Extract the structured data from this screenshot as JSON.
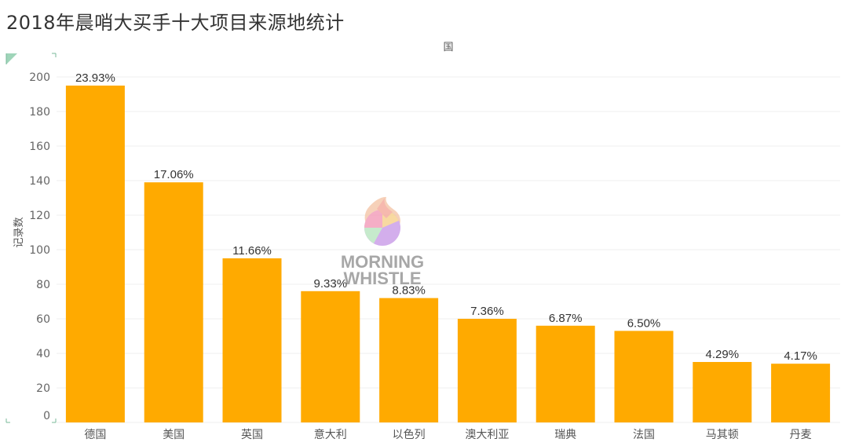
{
  "title": "2018年晨哨大买手十大项目来源地统计",
  "watermark": {
    "line1": "MORNING",
    "line2": "WHISTLE"
  },
  "chart_data": {
    "type": "bar",
    "title": "2018年晨哨大买手十大项目来源地统计",
    "xlabel": "国",
    "ylabel": "记录数",
    "ylim": [
      0,
      200
    ],
    "yticks": [
      0,
      20,
      40,
      60,
      80,
      100,
      120,
      140,
      160,
      180,
      200
    ],
    "categories": [
      "德国",
      "美国",
      "英国",
      "意大利",
      "以色列",
      "澳大利亚",
      "瑞典",
      "法国",
      "马其顿",
      "丹麦"
    ],
    "values": [
      195,
      139,
      95,
      76,
      72,
      60,
      56,
      53,
      35,
      34
    ],
    "data_labels": [
      "23.93%",
      "17.06%",
      "11.66%",
      "9.33%",
      "8.83%",
      "7.36%",
      "6.87%",
      "6.50%",
      "4.29%",
      "4.17%"
    ],
    "bar_color": "#FFAA00",
    "grid": true
  }
}
